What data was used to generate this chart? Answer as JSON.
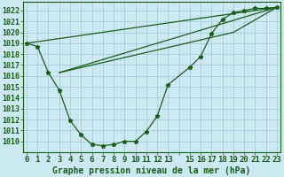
{
  "title": "Graphe pression niveau de la mer (hPa)",
  "background_color": "#cce8f0",
  "grid_color": "#aaccdd",
  "line_color": "#1a5c1a",
  "ylim": [
    1009.0,
    1022.8
  ],
  "yticks": [
    1010,
    1011,
    1012,
    1013,
    1014,
    1015,
    1016,
    1017,
    1018,
    1019,
    1020,
    1021,
    1022
  ],
  "xlim": [
    -0.3,
    23.3
  ],
  "xtick_positions": [
    0,
    1,
    2,
    3,
    4,
    5,
    6,
    7,
    8,
    9,
    10,
    11,
    12,
    13,
    14,
    15,
    16,
    17,
    18,
    19,
    20,
    21,
    22,
    23
  ],
  "xtick_labels": [
    "0",
    "1",
    "2",
    "3",
    "4",
    "5",
    "6",
    "7",
    "8",
    "9",
    "10",
    "11",
    "12",
    "13",
    "",
    "15",
    "16",
    "17",
    "18",
    "19",
    "20",
    "21",
    "22",
    "23"
  ],
  "curve1_x": [
    0,
    1,
    2,
    3,
    4,
    5,
    6,
    7,
    8,
    9,
    10,
    11,
    12,
    13,
    15,
    16,
    17,
    18,
    19,
    20,
    21,
    22,
    23
  ],
  "curve1_y": [
    1019.0,
    1018.7,
    1016.3,
    1014.7,
    1011.9,
    1010.6,
    1009.7,
    1009.6,
    1009.7,
    1010.0,
    1010.0,
    1010.9,
    1012.3,
    1015.2,
    1016.8,
    1017.8,
    1019.9,
    1021.2,
    1021.8,
    1022.0,
    1022.2,
    1022.2,
    1022.3
  ],
  "line2_x": [
    0,
    23
  ],
  "line2_y": [
    1019.0,
    1022.3
  ],
  "line3_x": [
    3,
    23
  ],
  "line3_y": [
    1016.3,
    1022.3
  ],
  "line4_x": [
    3,
    19,
    23
  ],
  "line4_y": [
    1016.3,
    1020.0,
    1022.3
  ],
  "xlabel_fontsize": 6.5,
  "ylabel_fontsize": 6.0,
  "title_fontsize": 7.0
}
